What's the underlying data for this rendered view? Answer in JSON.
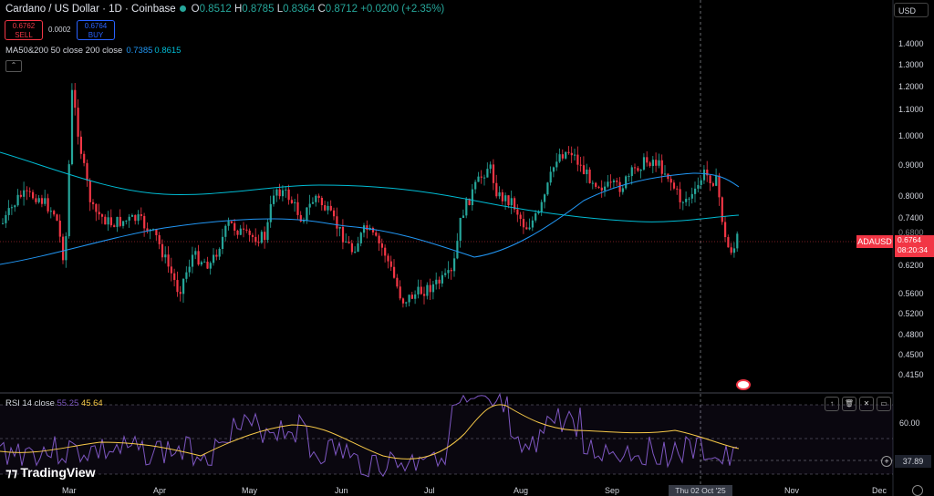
{
  "header": {
    "symbol": "Cardano / US Dollar · 1D · Coinbase",
    "open_label": "O",
    "open": "0.8512",
    "high_label": "H",
    "high": "0.8785",
    "low_label": "L",
    "low": "0.8364",
    "close_label": "C",
    "close": "0.8712",
    "change": "+0.0200 (+2.35%)"
  },
  "trade": {
    "sell_price": "0.6762",
    "sell_label": "SELL",
    "spread": "0.0002",
    "buy_price": "0.6764",
    "buy_label": "BUY"
  },
  "ma": {
    "label": "MA50&200 50 close 200 close",
    "ma50": "0.7385",
    "ma200": "0.8615"
  },
  "currency": "USD",
  "price_axis": [
    "1.4000",
    "1.3000",
    "1.2000",
    "1.1000",
    "1.0000",
    "0.9000",
    "0.8000",
    "0.7400",
    "0.6800",
    "0.6200",
    "0.5600",
    "0.5200",
    "0.4800",
    "0.4500",
    "0.4150"
  ],
  "price_tag": {
    "symbol": "ADAUSD",
    "price": "0.6764",
    "countdown": "08:20:34"
  },
  "rsi": {
    "label": "RSI 14 close",
    "rsi": "55.25",
    "ma": "45.64",
    "tick": "60.00",
    "current": "37.89"
  },
  "x_axis": [
    "Mar",
    "Apr",
    "May",
    "Jun",
    "Jul",
    "Aug",
    "Sep",
    "Nov",
    "Dec"
  ],
  "crosshair_date": "Thu 02 Oct '25",
  "brand": "TradingView",
  "colors": {
    "up": "#26a69a",
    "down": "#f23645",
    "ma50": "#2196f3",
    "ma200": "#00bcd4",
    "rsi": "#7e57c2",
    "rsi_ma": "#f7c948"
  }
}
